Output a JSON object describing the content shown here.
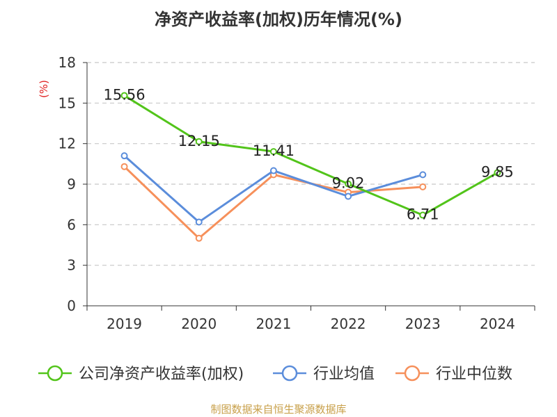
{
  "chart_data": {
    "type": "line",
    "title": "净资产收益率(加权)历年情况(%)",
    "ylabel": "(%)",
    "xlabel": "",
    "categories": [
      "2019",
      "2020",
      "2021",
      "2022",
      "2023",
      "2024"
    ],
    "ylim": [
      0,
      18
    ],
    "yticks": [
      0,
      3,
      6,
      9,
      12,
      15,
      18
    ],
    "grid": true,
    "legend_position": "bottom",
    "series": [
      {
        "name": "公司净资产收益率(加权)",
        "color": "#52c41a",
        "values": [
          15.56,
          12.15,
          11.41,
          9.02,
          6.71,
          9.85
        ],
        "labels": true
      },
      {
        "name": "行业均值",
        "color": "#5b8ddb",
        "values": [
          11.1,
          6.2,
          10.0,
          8.1,
          9.7,
          null
        ],
        "labels": false
      },
      {
        "name": "行业中位数",
        "color": "#f6905b",
        "values": [
          10.3,
          5.0,
          9.7,
          8.4,
          8.8,
          null
        ],
        "labels": false
      }
    ]
  },
  "source": "制图数据来自恒生聚源数据库"
}
